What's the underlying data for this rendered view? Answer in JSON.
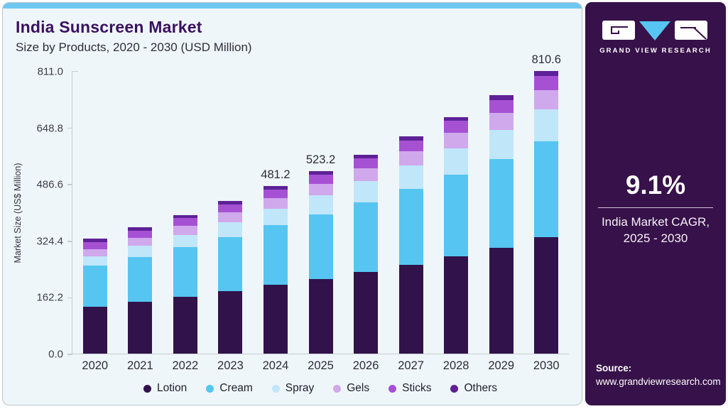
{
  "header": {
    "title": "India Sunscreen Market",
    "subtitle": "Size by Products, 2020 - 2030 (USD Million)"
  },
  "chart_data": {
    "type": "bar",
    "stacked": true,
    "title": "India Sunscreen Market Size by Products, 2020 - 2030 (USD Million)",
    "xlabel": "",
    "ylabel": "Market Size (US$ Million)",
    "categories": [
      "2020",
      "2021",
      "2022",
      "2023",
      "2024",
      "2025",
      "2026",
      "2027",
      "2028",
      "2029",
      "2030"
    ],
    "y_ticks": [
      "811.0",
      "648.8",
      "486.6",
      "324.4",
      "162.2",
      "0.0"
    ],
    "ylim": [
      0,
      811.0
    ],
    "grid": false,
    "legend_position": "bottom",
    "series": [
      {
        "name": "Lotion",
        "color": "#31124b",
        "values": [
          135.3,
          148.6,
          163.4,
          179.6,
          197.3,
          214.0,
          234.0,
          255.3,
          279.2,
          304.6,
          334.0
        ]
      },
      {
        "name": "Cream",
        "color": "#56c5f1",
        "values": [
          118.1,
          129.4,
          141.9,
          155.5,
          170.8,
          185.7,
          200.9,
          217.3,
          235.1,
          254.2,
          275.6
        ]
      },
      {
        "name": "Spray",
        "color": "#c0e6fa",
        "values": [
          26.4,
          30.8,
          35.5,
          41.2,
          47.2,
          53.9,
          59.9,
          66.6,
          74.1,
          82.3,
          90.8
        ]
      },
      {
        "name": "Gels",
        "color": "#d0a8ec",
        "values": [
          20.8,
          23.2,
          25.5,
          28.5,
          31.3,
          34.0,
          37.7,
          41.1,
          45.5,
          49.7,
          55.1
        ]
      },
      {
        "name": "Sticks",
        "color": "#a651d4",
        "values": [
          19.5,
          20.7,
          22.3,
          23.7,
          25.0,
          25.7,
          28.0,
          31.2,
          34.0,
          37.8,
          41.3
        ]
      },
      {
        "name": "Others",
        "color": "#5e2197",
        "values": [
          9.9,
          9.8,
          9.9,
          9.5,
          9.6,
          9.9,
          10.3,
          11.2,
          11.5,
          12.6,
          13.8
        ]
      }
    ],
    "totals": [
      330.0,
      362.5,
      398.5,
      438.0,
      481.2,
      523.2,
      570.8,
      622.7,
      679.4,
      741.2,
      810.6
    ],
    "total_labels": {
      "2024": "481.2",
      "2025": "523.2",
      "2030": "810.6"
    }
  },
  "sidebar": {
    "logo_text": "GRAND VIEW RESEARCH",
    "cagr_value": "9.1%",
    "cagr_label_line1": "India Market CAGR,",
    "cagr_label_line2": "2025 - 2030",
    "source_label": "Source:",
    "source_url": "www.grandviewresearch.com"
  },
  "colors": {
    "card_bg": "#eff6fa",
    "top_strip": "#6fc7ef",
    "panel_bg": "#371149",
    "title": "#3a1160",
    "axis_line": "#c6cbd1",
    "accent_cyan": "#56c5f1"
  }
}
